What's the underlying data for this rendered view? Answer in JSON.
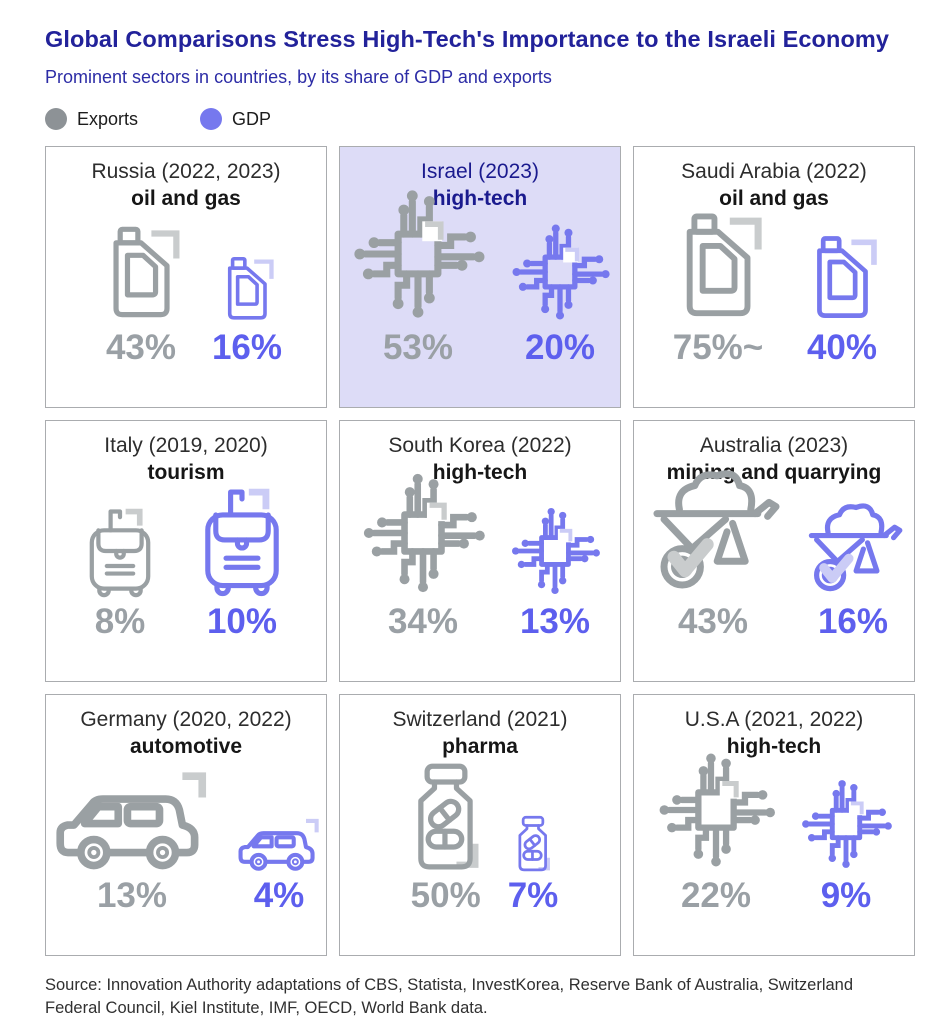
{
  "header": {
    "title": "Global Comparisons Stress High-Tech's Importance to the Israeli Economy",
    "subtitle": "Prominent sectors in countries, by its share of GDP and exports"
  },
  "legend": {
    "exports_label": "Exports",
    "gdp_label": "GDP",
    "exports_color": "#8d9296",
    "gdp_color": "#7678ee"
  },
  "colors": {
    "title_navy": "#22229a",
    "subtitle_navy": "#2c2ca6",
    "gray_icon": "#9aa0a3",
    "gray_value": "#9aa0a5",
    "purple_icon": "#7678ee",
    "purple_value": "#5d5fee",
    "israel_panel_bg": "#dddcf7",
    "panel_border": "#aaacaf"
  },
  "chart_data": {
    "type": "pictogram-grid",
    "title": "Global Comparisons Stress High-Tech's Importance to the Israeli Economy",
    "subtitle": "Prominent sectors in countries, by its share of GDP and exports",
    "series_labels": [
      "Exports",
      "GDP"
    ],
    "panels": [
      {
        "country": "Russia (2022, 2023)",
        "sector": "oil and gas",
        "icon": "oil-can-icon",
        "exports_label": "43%",
        "exports_value": 43,
        "gdp_label": "16%",
        "gdp_value": 16,
        "highlighted": false,
        "exports_icon_width": 104,
        "gdp_icon_width": 72
      },
      {
        "country": "Israel (2023)",
        "sector": "high-tech",
        "icon": "chip-icon",
        "exports_label": "53%",
        "exports_value": 53,
        "gdp_label": "20%",
        "gdp_value": 20,
        "highlighted": true,
        "exports_icon_width": 142,
        "gdp_icon_width": 106
      },
      {
        "country": "Saudi Arabia (2022)",
        "sector": "oil and gas",
        "icon": "oil-can-icon",
        "exports_label": "75%~",
        "exports_value": 75,
        "gdp_label": "40%",
        "gdp_value": 40,
        "highlighted": false,
        "exports_icon_width": 118,
        "gdp_icon_width": 94
      },
      {
        "country": "Italy (2019, 2020)",
        "sector": "tourism",
        "icon": "suitcase-icon",
        "exports_label": "8%",
        "exports_value": 8,
        "gdp_label": "10%",
        "gdp_value": 10,
        "highlighted": false,
        "exports_icon_width": 94,
        "gdp_icon_width": 114
      },
      {
        "country": "South Korea (2022)",
        "sector": "high-tech",
        "icon": "chip-icon",
        "exports_label": "34%",
        "exports_value": 34,
        "gdp_label": "13%",
        "gdp_value": 13,
        "highlighted": false,
        "exports_icon_width": 132,
        "gdp_icon_width": 96
      },
      {
        "country": "Australia (2023)",
        "sector": "mining and quarrying",
        "icon": "wheelbarrow-icon",
        "exports_label": "43%",
        "exports_value": 43,
        "gdp_label": "16%",
        "gdp_value": 16,
        "highlighted": false,
        "exports_icon_width": 140,
        "gdp_icon_width": 104
      },
      {
        "country": "Germany (2020, 2022)",
        "sector": "automotive",
        "icon": "car-icon",
        "exports_label": "13%",
        "exports_value": 13,
        "gdp_label": "4%",
        "gdp_value": 4,
        "highlighted": false,
        "exports_icon_width": 168,
        "gdp_icon_width": 90
      },
      {
        "country": "Switzerland (2021)",
        "sector": "pharma",
        "icon": "pill-bottle-icon",
        "exports_label": "50%",
        "exports_value": 50,
        "gdp_label": "7%",
        "gdp_value": 7,
        "highlighted": false,
        "exports_icon_width": 88,
        "gdp_icon_width": 46
      },
      {
        "country": "U.S.A (2021, 2022)",
        "sector": "high-tech",
        "icon": "chip-icon",
        "exports_label": "22%",
        "exports_value": 22,
        "gdp_label": "9%",
        "gdp_value": 9,
        "highlighted": false,
        "exports_icon_width": 126,
        "gdp_icon_width": 98
      }
    ]
  },
  "footer": {
    "source": "Source: Innovation Authority adaptations of CBS, Statista, InvestKorea, Reserve Bank of Australia, Switzerland Federal Council, Kiel Institute, IMF, OECD, World Bank data."
  }
}
